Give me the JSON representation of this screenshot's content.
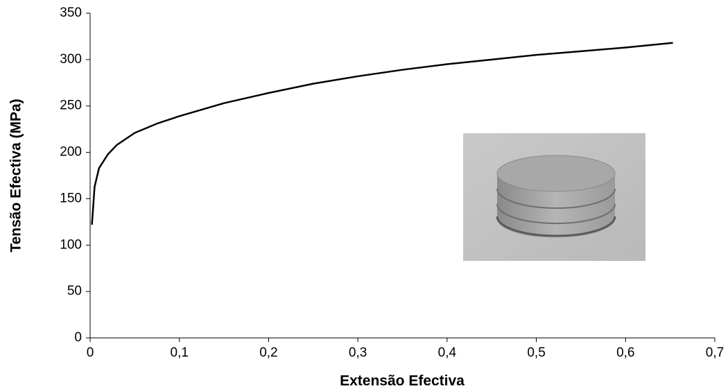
{
  "chart_data": {
    "type": "line",
    "x_label": "Extensão Efectiva",
    "y_label": "Tensão Efectiva (MPa)",
    "x": [
      0.002,
      0.005,
      0.01,
      0.02,
      0.03,
      0.05,
      0.075,
      0.1,
      0.15,
      0.2,
      0.25,
      0.3,
      0.35,
      0.4,
      0.45,
      0.5,
      0.55,
      0.6,
      0.653
    ],
    "values": [
      122,
      163,
      183,
      198,
      208,
      221,
      231,
      239,
      253,
      264,
      274,
      282,
      289,
      295,
      300,
      305,
      309,
      313,
      318
    ],
    "color": "#000000",
    "xlim": [
      0,
      0.7
    ],
    "xticks": [
      0,
      {
        "value": 0.1,
        "label": "0,1"
      },
      {
        "value": 0.2,
        "label": "0,2"
      },
      {
        "value": 0.3,
        "label": "0,3"
      },
      {
        "value": 0.4,
        "label": "0,4"
      },
      {
        "value": 0.5,
        "label": "0,5"
      },
      {
        "value": 0.6,
        "label": "0,6"
      },
      {
        "value": 0.7,
        "label": "0,7"
      }
    ],
    "ylim": [
      0,
      350
    ],
    "yticks": [
      0,
      50,
      100,
      150,
      200,
      250,
      300,
      350
    ],
    "grid": false
  }
}
